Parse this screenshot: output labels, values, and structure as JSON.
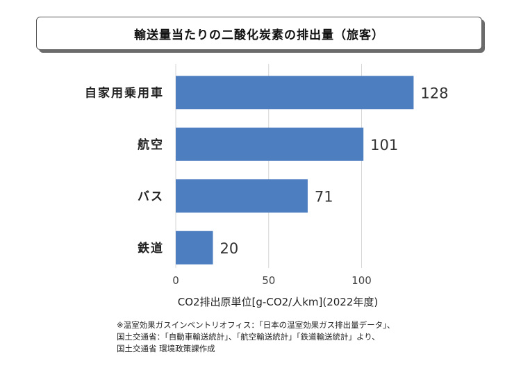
{
  "title": "輸送量当たりの二酸化炭素の排出量（旅客）",
  "chart_data": {
    "type": "bar",
    "orientation": "horizontal",
    "categories": [
      "自家用乗用車",
      "航空",
      "バス",
      "鉄道"
    ],
    "values": [
      128,
      101,
      71,
      20
    ],
    "xlabel": "CO2排出原単位[g-CO2/人km](2022年度)",
    "xlim": [
      0,
      135
    ],
    "xticks": [
      0,
      50,
      100
    ],
    "grid": "vertical",
    "bar_color": "#4d7ebf"
  },
  "note": {
    "line1": "※温室効果ガスインベントリオフィス：「日本の温室効果ガス排出量データ」、",
    "line2": "国土交通省：「自動車輸送統計」、「航空輸送統計」「鉄道輸送統計」より、",
    "line3": "国土交通省 環境政策課作成"
  }
}
